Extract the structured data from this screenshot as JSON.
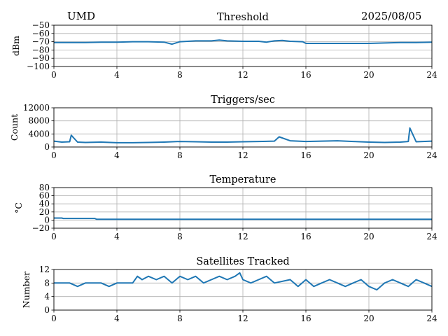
{
  "header": {
    "left": "UMD",
    "center": "Threshold",
    "right": "2025/08/05"
  },
  "colors": {
    "line": "#1f77b4",
    "grid": "#b0b0b0",
    "axis": "#000000"
  },
  "chart_data": [
    {
      "type": "line",
      "title": "Threshold",
      "xlabel": "",
      "ylabel": "dBm",
      "xlim": [
        0,
        24
      ],
      "ylim": [
        -100,
        -50
      ],
      "xticks": [
        "0",
        "4",
        "8",
        "12",
        "16",
        "20",
        "24"
      ],
      "yticks": [
        "−50",
        "−60",
        "−70",
        "−80",
        "−90",
        "−100"
      ],
      "grid": true,
      "series": [
        {
          "x": [
            0,
            1,
            2,
            3,
            4,
            5,
            6,
            7,
            7.5,
            8,
            9,
            10,
            10.5,
            11,
            12,
            13,
            13.5,
            14,
            14.5,
            15,
            15.8,
            16,
            17,
            18,
            19,
            20,
            21,
            22,
            23,
            24
          ],
          "y": [
            -71,
            -71,
            -71,
            -70.5,
            -70.5,
            -70,
            -70,
            -70.5,
            -73,
            -70,
            -69,
            -69,
            -68,
            -69,
            -69.5,
            -69.5,
            -70.5,
            -69,
            -68.5,
            -69.5,
            -70,
            -72,
            -72,
            -72,
            -72,
            -72,
            -71.5,
            -71,
            -71,
            -70.5
          ]
        }
      ]
    },
    {
      "type": "line",
      "title": "Triggers/sec",
      "xlabel": "",
      "ylabel": "Count",
      "xlim": [
        0,
        24
      ],
      "ylim": [
        0,
        12000
      ],
      "xticks": [
        "0",
        "4",
        "8",
        "12",
        "16",
        "20",
        "24"
      ],
      "yticks": [
        "12000",
        "8000",
        "4000",
        "0"
      ],
      "grid": true,
      "series": [
        {
          "x": [
            0,
            0.5,
            1,
            1.1,
            1.5,
            2,
            3,
            4,
            5,
            6,
            7,
            8,
            9,
            10,
            11,
            12,
            13,
            14,
            14.3,
            15,
            16,
            17,
            18,
            19,
            20,
            21,
            22,
            22.5,
            22.6,
            23,
            24
          ],
          "y": [
            1800,
            1500,
            1600,
            3600,
            1500,
            1400,
            1500,
            1300,
            1300,
            1400,
            1500,
            1700,
            1600,
            1500,
            1500,
            1600,
            1700,
            1800,
            3100,
            1900,
            1700,
            1800,
            1900,
            1700,
            1500,
            1400,
            1500,
            1700,
            5800,
            1600,
            1800
          ]
        }
      ]
    },
    {
      "type": "line",
      "title": "Temperature",
      "xlabel": "",
      "ylabel": "°C",
      "xlim": [
        0,
        24
      ],
      "ylim": [
        -20,
        80
      ],
      "xticks": [
        "0",
        "4",
        "8",
        "12",
        "16",
        "20",
        "24"
      ],
      "yticks": [
        "80",
        "60",
        "40",
        "20",
        "0",
        "−20"
      ],
      "grid": true,
      "series": [
        {
          "x": [
            0,
            0.5,
            0.6,
            2.6,
            2.7,
            16,
            24
          ],
          "y": [
            5,
            5,
            4,
            4,
            2,
            2,
            2
          ]
        }
      ]
    },
    {
      "type": "line",
      "title": "Satellites Tracked",
      "xlabel": "",
      "ylabel": "Number",
      "xlim": [
        0,
        24
      ],
      "ylim": [
        0,
        12
      ],
      "xticks": [
        "0",
        "4",
        "8",
        "12",
        "16",
        "20",
        "24"
      ],
      "yticks": [
        "12",
        "8",
        "4",
        "0"
      ],
      "grid": true,
      "series": [
        {
          "x": [
            0,
            1,
            1.5,
            2,
            3,
            3.5,
            4,
            5,
            5.3,
            5.6,
            6,
            6.5,
            7,
            7.5,
            8,
            8.5,
            9,
            9.5,
            10,
            10.5,
            11,
            11.5,
            11.8,
            12,
            12.5,
            13,
            13.5,
            14,
            15,
            15.5,
            16,
            16.5,
            17,
            17.5,
            18,
            18.5,
            19,
            19.5,
            20,
            20.5,
            21,
            21.5,
            22,
            22.5,
            23,
            23.5,
            24
          ],
          "y": [
            8,
            8,
            7,
            8,
            8,
            7,
            8,
            8,
            10,
            9,
            10,
            9,
            10,
            8,
            10,
            9,
            10,
            8,
            9,
            10,
            9,
            10,
            11,
            9,
            8,
            9,
            10,
            8,
            9,
            7,
            9,
            7,
            8,
            9,
            8,
            7,
            8,
            9,
            7,
            6,
            8,
            9,
            8,
            7,
            9,
            8,
            7
          ]
        }
      ]
    }
  ]
}
